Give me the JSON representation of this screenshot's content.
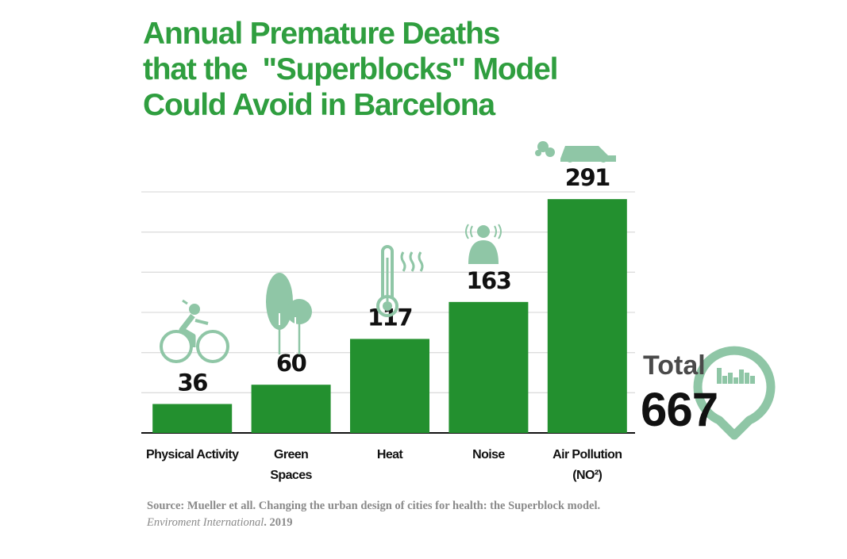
{
  "chart_data": {
    "type": "bar",
    "title_lines": [
      "Annual Premature Deaths",
      "that the  \"Superblocks\" Model",
      "Could Avoid in Barcelona"
    ],
    "categories": [
      {
        "lines": [
          "Physical Activity"
        ]
      },
      {
        "lines": [
          "Green",
          "Spaces"
        ]
      },
      {
        "lines": [
          "Heat"
        ]
      },
      {
        "lines": [
          "Noise"
        ]
      },
      {
        "lines": [
          "Air Pollution",
          "(NO²)"
        ]
      }
    ],
    "values": [
      36,
      60,
      117,
      163,
      291
    ],
    "data_labels": [
      "36",
      "60",
      "117",
      "163",
      "291"
    ],
    "icons": [
      "cyclist-icon",
      "trees-icon",
      "thermometer-icon",
      "noise-person-icon",
      "car-exhaust-icon"
    ],
    "ylim": [
      0,
      300
    ],
    "grid_step": 50,
    "grid": true,
    "xlabel": "",
    "ylabel": "",
    "colors": {
      "bar": "#23902f",
      "title": "#2f9e3f",
      "icon": "#8fc6a6",
      "grid": "#dddddd"
    },
    "total": {
      "label": "Total",
      "value": "667",
      "icon": "map-pin-equalizer-icon"
    },
    "source": {
      "prefix": "Source: Mueller et all. Changing the urban design of cities for health: the Superblock model. ",
      "journal": "Enviroment International",
      "suffix": ". 2019"
    }
  }
}
